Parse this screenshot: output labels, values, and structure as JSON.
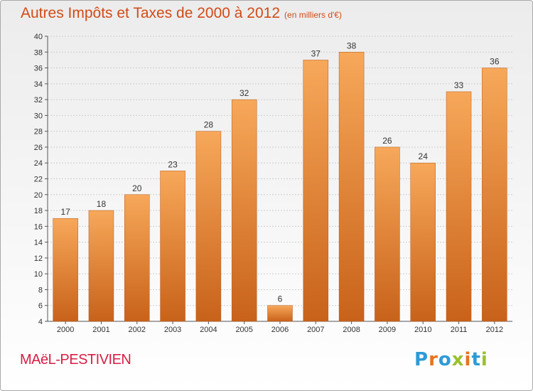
{
  "title": "Autres Impôts et Taxes de 2000 à 2012",
  "unit": "(en milliers d'€)",
  "commune": "MAëL-PESTIVIEN",
  "logo": {
    "text": "Proxiti",
    "letter_colors": [
      "#2e9ad6",
      "#e8741e",
      "#2e9ad6",
      "#9bc02d",
      "#e8741e",
      "#2e9ad6",
      "#9bc02d"
    ]
  },
  "colors": {
    "bar_light": "#f7a85a",
    "bar_dark": "#c8621a",
    "title": "#d24b17",
    "commune": "#d81e44"
  },
  "chart_data": {
    "type": "bar",
    "title": "Autres Impôts et Taxes de 2000 à 2012",
    "ylabel": "(en milliers d'€)",
    "categories": [
      "2000",
      "2001",
      "2002",
      "2003",
      "2004",
      "2005",
      "2006",
      "2007",
      "2008",
      "2009",
      "2010",
      "2011",
      "2012"
    ],
    "values": [
      17,
      18,
      20,
      23,
      28,
      32,
      6,
      37,
      38,
      26,
      24,
      33,
      36
    ],
    "ylim": [
      4,
      40
    ],
    "yticks": [
      4,
      6,
      8,
      10,
      12,
      14,
      16,
      18,
      20,
      22,
      24,
      26,
      28,
      30,
      32,
      34,
      36,
      38,
      40
    ],
    "grid": true
  }
}
